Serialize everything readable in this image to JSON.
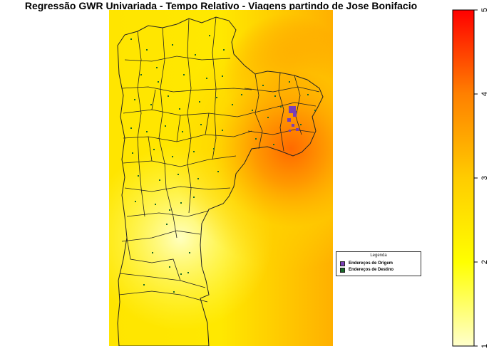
{
  "title": "Regressão GWR Univariada - Tempo Relativo - Viagens partindo de Jose Bonifacio",
  "legend": {
    "title": "Legenda",
    "items": [
      {
        "label": "Endereços de Origem",
        "color": "#7b3fb5"
      },
      {
        "label": "Endereços de Destino",
        "color": "#1a6b2a"
      }
    ]
  },
  "scale": {
    "ticks": [
      "1",
      "2",
      "3",
      "4",
      "5"
    ],
    "colors": [
      "#ffffcc",
      "#ffff00",
      "#ffcc00",
      "#ff8000",
      "#ff0000"
    ]
  }
}
